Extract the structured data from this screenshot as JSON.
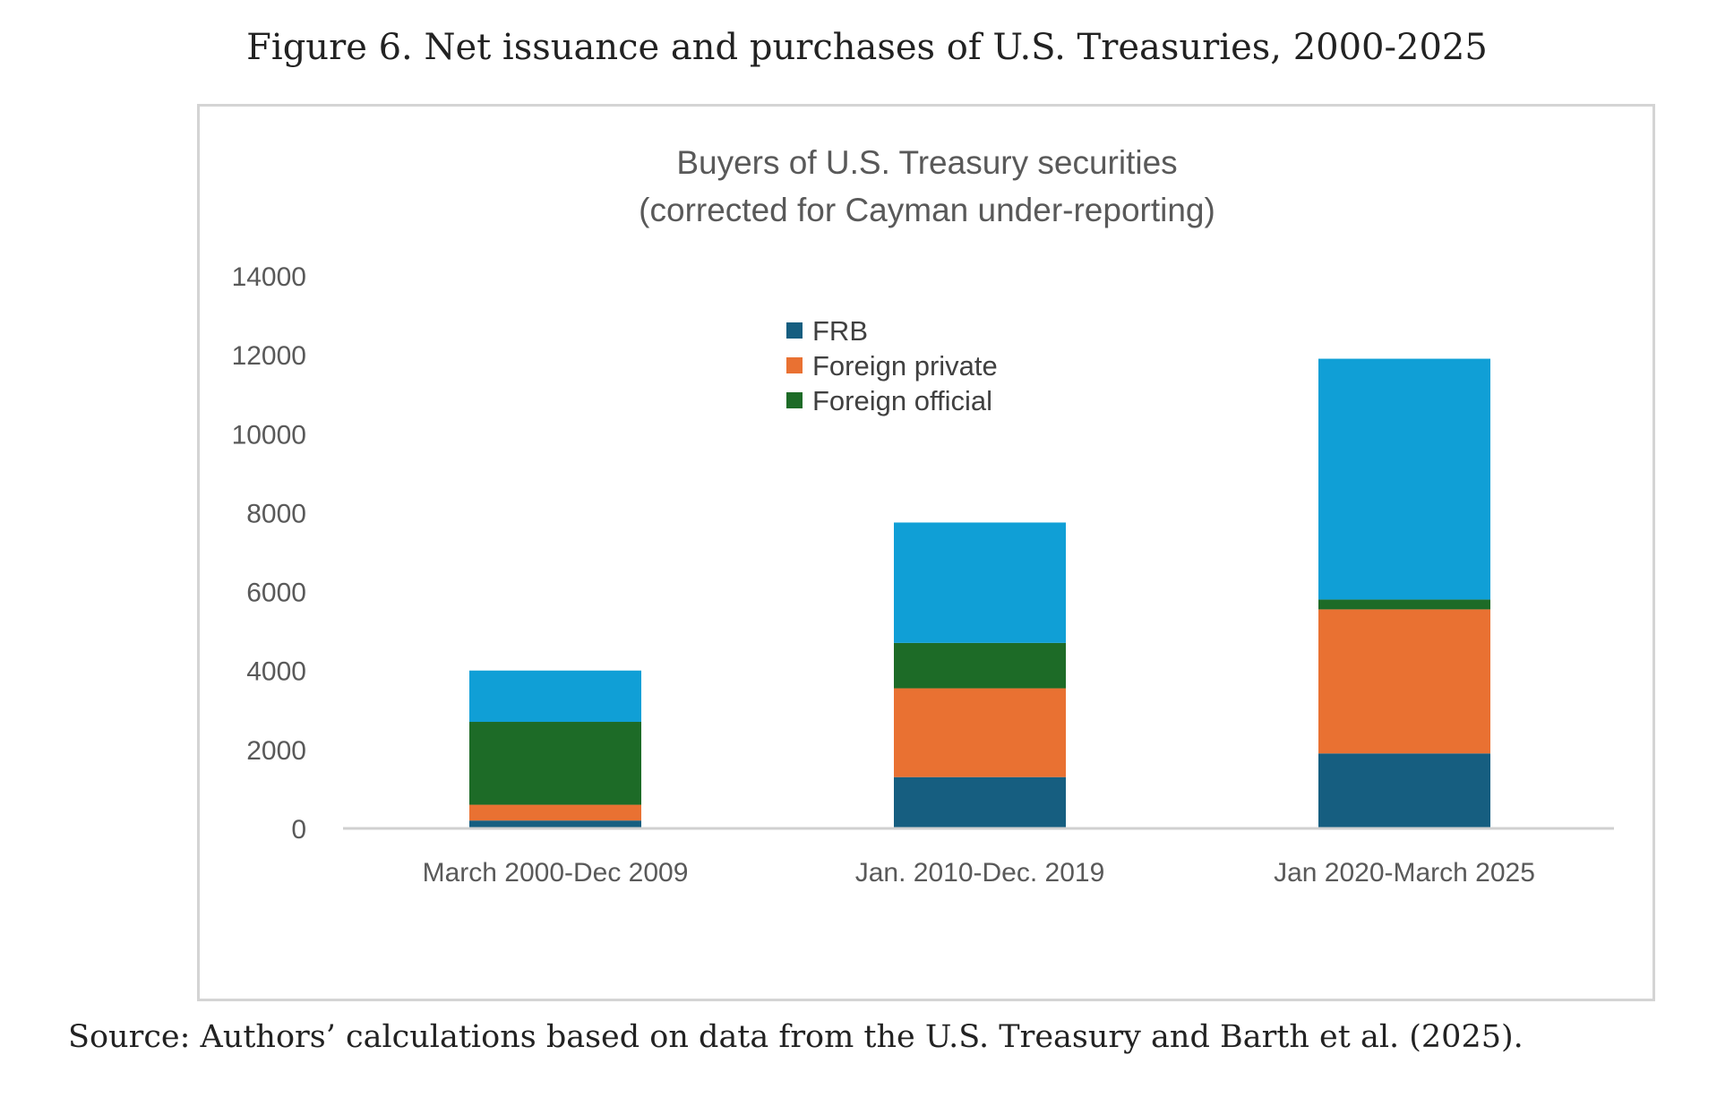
{
  "figure": {
    "title": "Figure 6. Net issuance and purchases of U.S. Treasuries, 2000-2025",
    "source": "Source: Authors’ calculations based on data from the U.S. Treasury and Barth et al. (2025)."
  },
  "chart_data": {
    "type": "bar",
    "stacked": true,
    "title_lines": [
      "Buyers of U.S. Treasury securities",
      "(corrected for Cayman under-reporting)"
    ],
    "categories": [
      "March 2000-Dec 2009",
      "Jan. 2010-Dec. 2019",
      "Jan 2020-March 2025"
    ],
    "series": [
      {
        "name": "FRB",
        "color": "#165e80",
        "values": [
          200,
          1300,
          1900
        ]
      },
      {
        "name": "Foreign private",
        "color": "#e97132",
        "values": [
          400,
          2250,
          3650
        ]
      },
      {
        "name": "Foreign official",
        "color": "#1d6b27",
        "values": [
          2100,
          1150,
          250
        ]
      },
      {
        "color": "#109fd6",
        "values": [
          1300,
          3050,
          6100
        ]
      }
    ],
    "yticks": [
      "0",
      "2000",
      "4000",
      "6000",
      "8000",
      "10000",
      "12000",
      "14000"
    ],
    "ylim": [
      0,
      14000
    ],
    "grid": false,
    "legend_position": "top-center"
  }
}
